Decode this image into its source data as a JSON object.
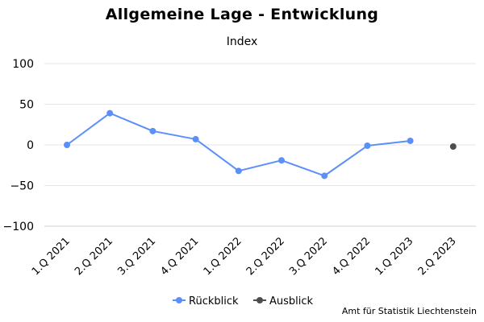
{
  "chart_data": {
    "type": "line",
    "title": "Allgemeine Lage - Entwicklung",
    "subtitle": "Index",
    "categories": [
      "1.Q 2021",
      "2.Q 2021",
      "3.Q 2021",
      "4.Q 2021",
      "1.Q 2022",
      "2.Q 2022",
      "3.Q 2022",
      "4.Q 2022",
      "1.Q 2023",
      "2.Q 2023"
    ],
    "series": [
      {
        "name": "Rückblick",
        "color": "#5b8ff9",
        "values": [
          0,
          39,
          17,
          7,
          -32,
          -19,
          -38,
          -1,
          5,
          null
        ]
      },
      {
        "name": "Ausblick",
        "color": "#4d4d4d",
        "values": [
          null,
          null,
          null,
          null,
          null,
          null,
          null,
          null,
          null,
          -2
        ]
      }
    ],
    "ylim": [
      -100,
      100
    ],
    "yticks": [
      -100,
      -50,
      0,
      50,
      100
    ],
    "grid": true,
    "legend_position": "bottom"
  },
  "source": "Amt für Statistik Liechtenstein"
}
